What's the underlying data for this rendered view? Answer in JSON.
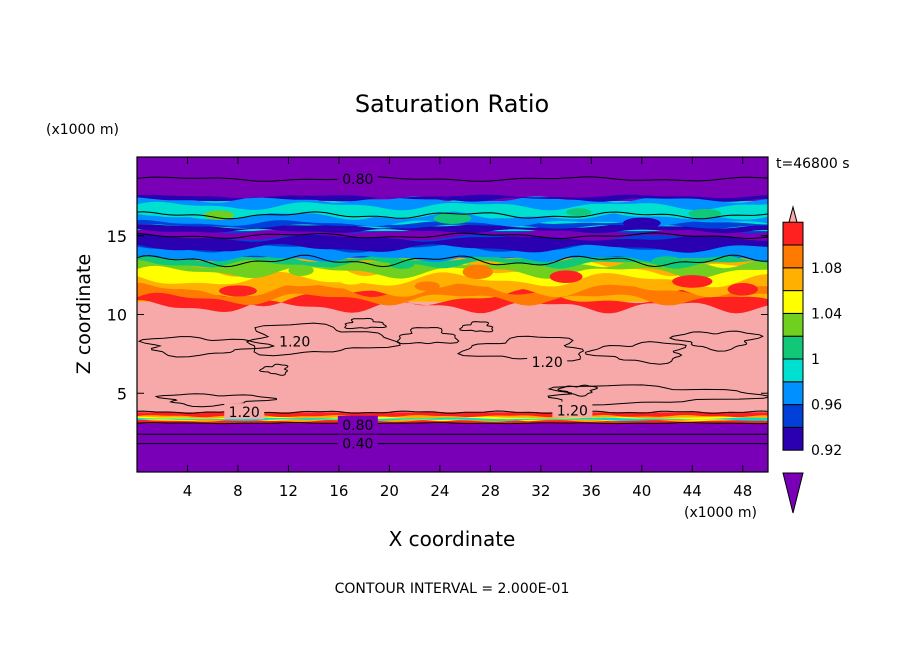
{
  "chart_data": {
    "type": "contour",
    "title": "Saturation Ratio",
    "xlabel": "X coordinate",
    "ylabel": "Z coordinate",
    "x_units": "(x1000 m)",
    "y_units": "(x1000 m)",
    "xlim": [
      0,
      50
    ],
    "ylim": [
      0,
      20
    ],
    "xticks": [
      4,
      8,
      12,
      16,
      20,
      24,
      28,
      32,
      36,
      40,
      44,
      48
    ],
    "yticks": [
      5,
      10,
      15
    ],
    "time_label": "t=46800 s",
    "footer": "CONTOUR INTERVAL = 2.000E-01",
    "colorbar": {
      "tick_labels": [
        "0.92",
        "0.96",
        "1",
        "1.04",
        "1.08"
      ],
      "colors": [
        "#7a00b8",
        "#2a00b0",
        "#0040d8",
        "#0090ff",
        "#00e0d0",
        "#10c878",
        "#70d020",
        "#ffff00",
        "#ffb000",
        "#ff7a00",
        "#ff2020",
        "#f7a8a8"
      ]
    },
    "layers": [
      {
        "z_from": 0.0,
        "z_to": 3.1,
        "value_range": "< 0.92",
        "color": "#7a00b8"
      },
      {
        "z_from": 3.1,
        "z_to": 3.8,
        "value_range": "0.92 - 1.1",
        "color": "#ff2020"
      },
      {
        "z_from": 3.8,
        "z_to": 10.8,
        "value_range": "> 1.1",
        "color": "#f7a8a8"
      },
      {
        "z_from": 10.8,
        "z_to": 13.6,
        "value_range": "0.96 - 1.1",
        "color": "#ffb000"
      },
      {
        "z_from": 13.6,
        "z_to": 15.3,
        "value_range": "0.92 - 0.96",
        "color": "#0040d8"
      },
      {
        "z_from": 15.3,
        "z_to": 17.2,
        "value_range": "0.92 - 1.0",
        "color": "#00e0d0"
      },
      {
        "z_from": 17.2,
        "z_to": 20.0,
        "value_range": "< 0.92",
        "color": "#7a00b8"
      }
    ],
    "contour_labels": [
      {
        "text": "0.80",
        "x": 17.5,
        "z": 18.6
      },
      {
        "text": "1.20",
        "x": 12.5,
        "z": 8.3
      },
      {
        "text": "1.20",
        "x": 32.5,
        "z": 7.0
      },
      {
        "text": "1.20",
        "x": 8.5,
        "z": 3.8
      },
      {
        "text": "1.20",
        "x": 34.5,
        "z": 3.9
      },
      {
        "text": "0.80",
        "x": 17.5,
        "z": 3.0
      },
      {
        "text": "0.40",
        "x": 17.5,
        "z": 1.8
      }
    ]
  }
}
